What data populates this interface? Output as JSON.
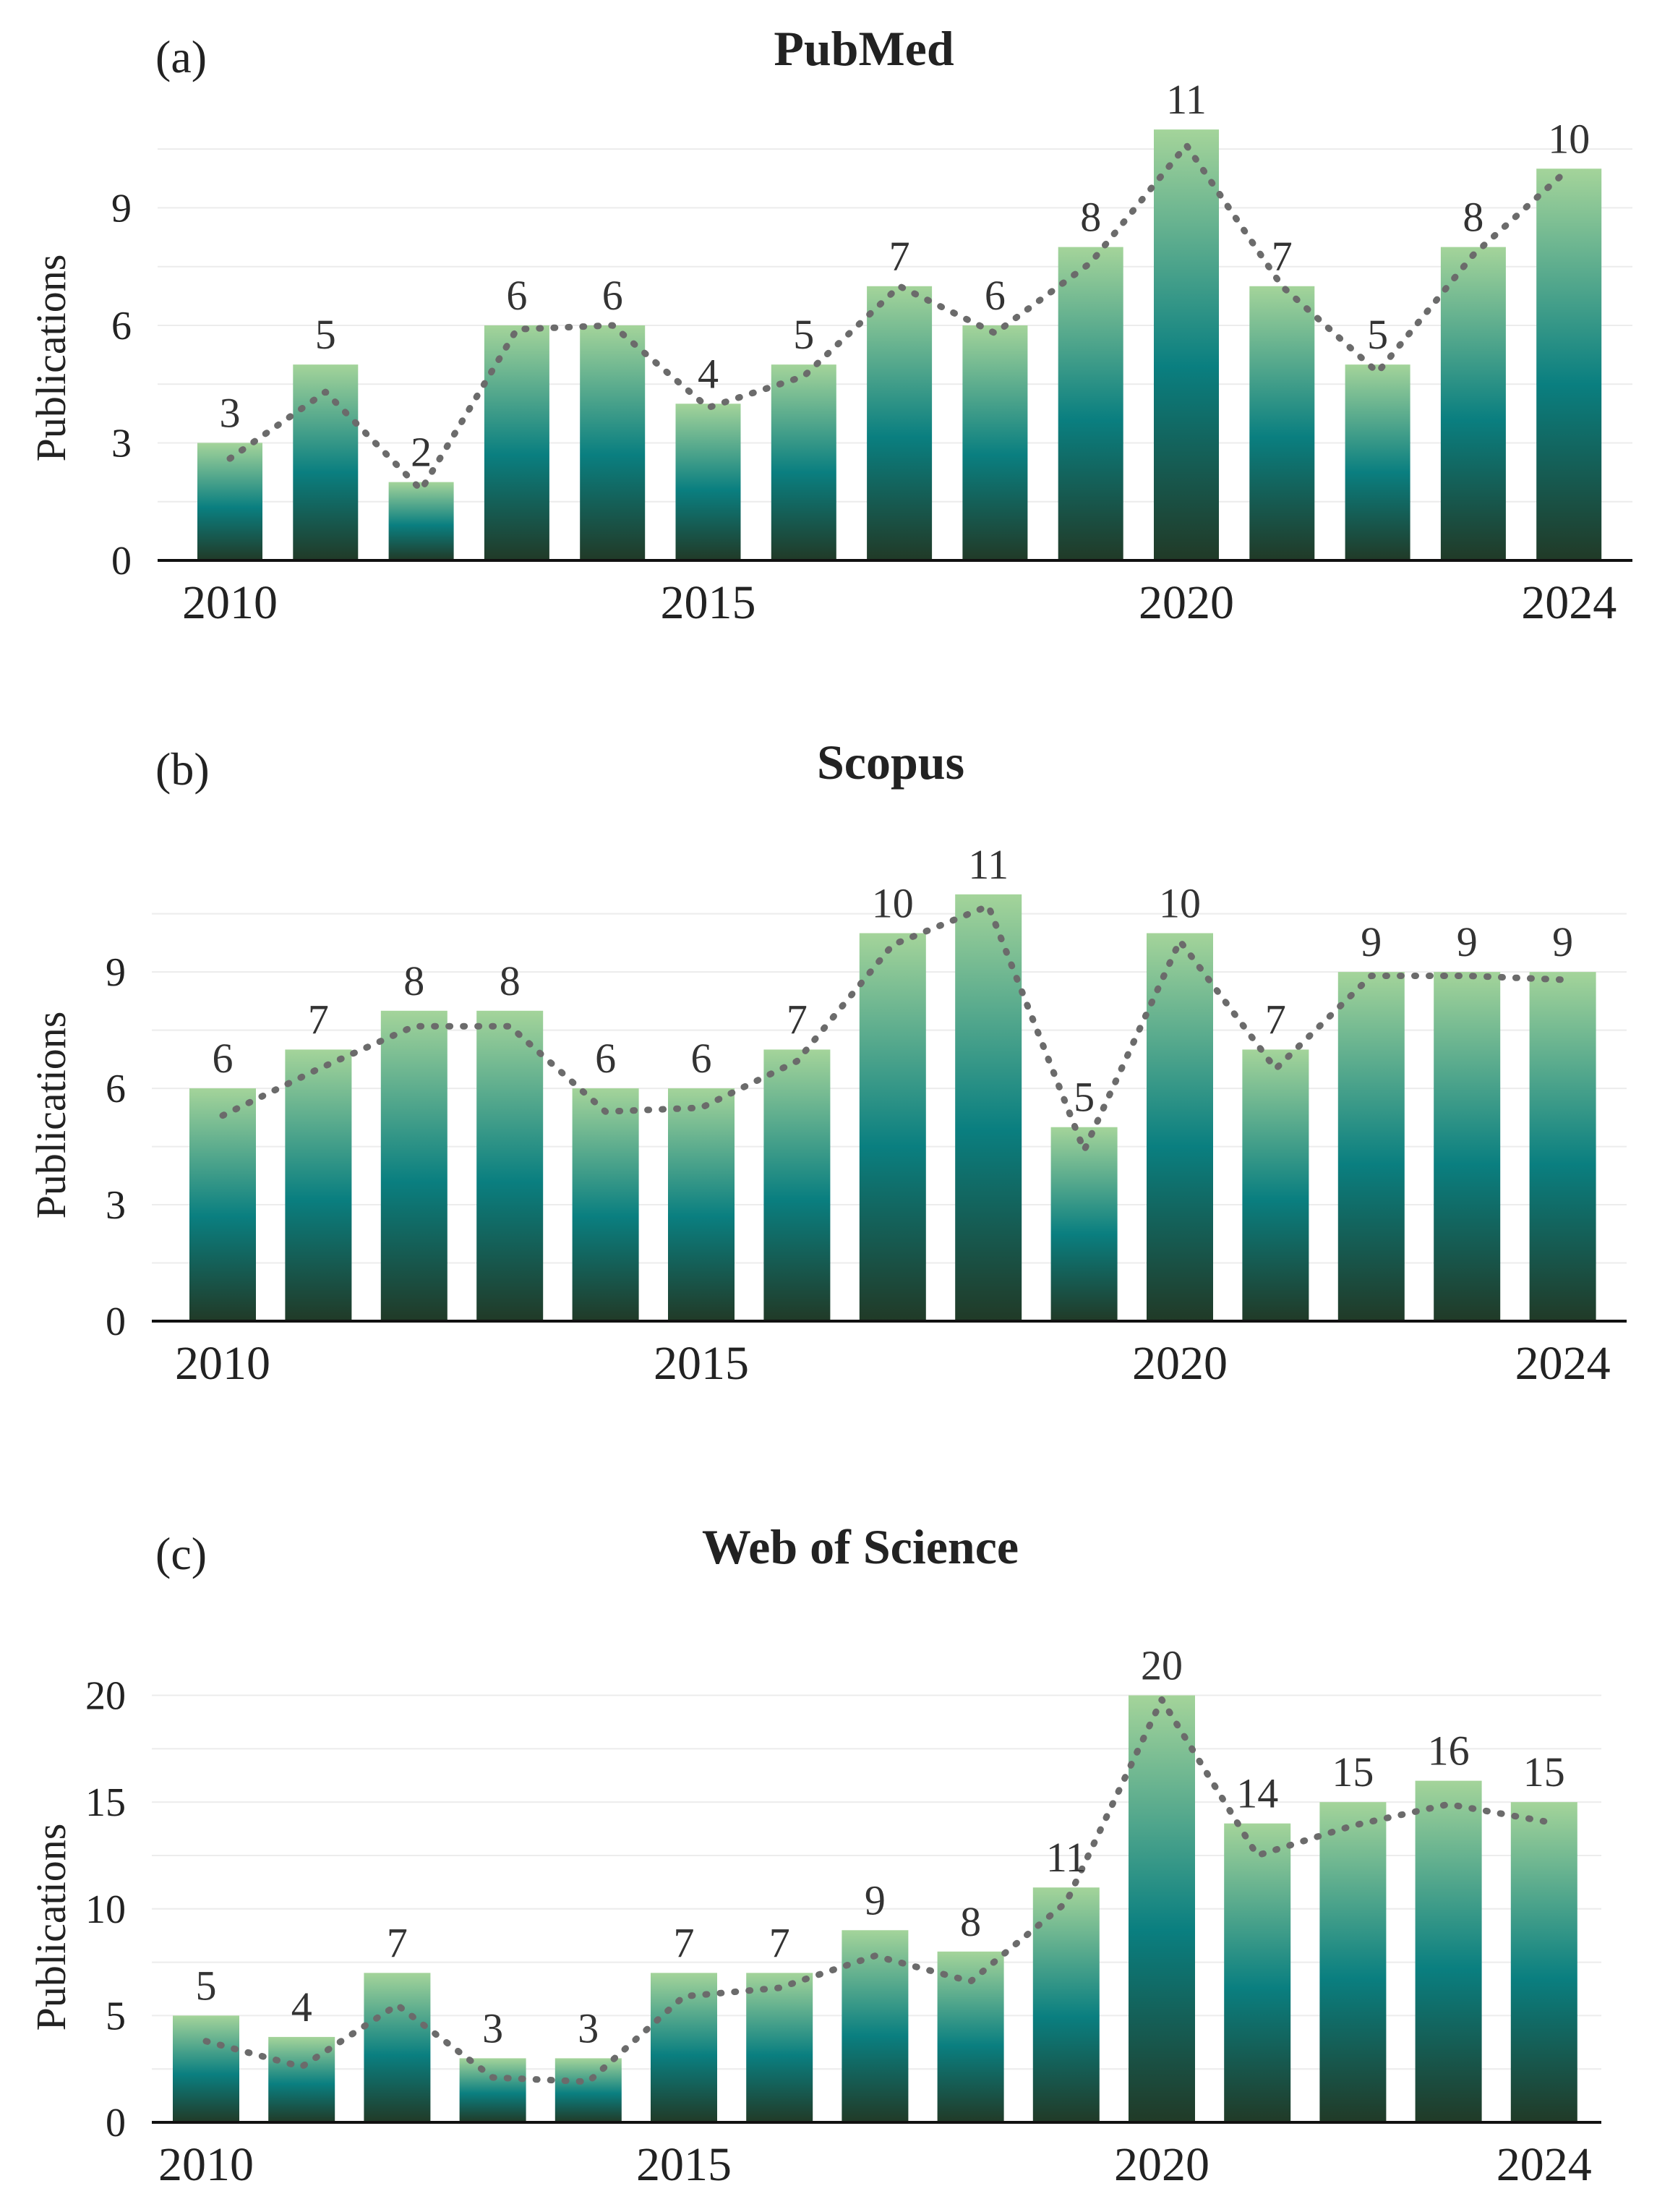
{
  "colors": {
    "bar_top": "#a4d49a",
    "bar_mid": "#0a7f80",
    "bar_bottom": "#213a27",
    "trend_line": "#6b6b6b"
  },
  "chart_data": [
    {
      "type": "bar",
      "panel_label": "(a)",
      "title": "PubMed",
      "ylabel": "Publications",
      "xlabel": "",
      "x": [
        2010,
        2011,
        2012,
        2013,
        2014,
        2015,
        2016,
        2017,
        2018,
        2019,
        2020,
        2021,
        2022,
        2023,
        2024
      ],
      "values": [
        3,
        5,
        2,
        6,
        6,
        4,
        5,
        7,
        6,
        8,
        11,
        7,
        5,
        8,
        10
      ],
      "trend": [
        2.6,
        4.3,
        1.8,
        5.9,
        6.0,
        3.9,
        4.7,
        7.0,
        5.8,
        7.6,
        10.6,
        7.0,
        4.8,
        7.8,
        10.0
      ],
      "xticks": [
        "2010",
        "2015",
        "2020",
        "2024"
      ],
      "xtick_positions": [
        2010,
        2015,
        2020,
        2024
      ],
      "yticks": [
        0,
        3,
        6,
        9
      ],
      "ylim": [
        0,
        11.5
      ]
    },
    {
      "type": "bar",
      "panel_label": "(b)",
      "title": "Scopus",
      "ylabel": "Publications",
      "xlabel": "",
      "x": [
        2010,
        2011,
        2012,
        2013,
        2014,
        2015,
        2016,
        2017,
        2018,
        2019,
        2020,
        2021,
        2022,
        2023,
        2024
      ],
      "values": [
        6,
        7,
        8,
        8,
        6,
        6,
        7,
        10,
        11,
        5,
        10,
        7,
        9,
        9,
        9
      ],
      "trend": [
        5.3,
        6.5,
        7.6,
        7.6,
        5.4,
        5.5,
        6.7,
        9.7,
        10.7,
        4.4,
        9.8,
        6.5,
        8.9,
        8.9,
        8.8
      ],
      "xticks": [
        "2010",
        "2015",
        "2020",
        "2024"
      ],
      "xtick_positions": [
        2010,
        2015,
        2020,
        2024
      ],
      "yticks": [
        0,
        3,
        6,
        9
      ],
      "ylim": [
        0,
        11.5
      ]
    },
    {
      "type": "bar",
      "panel_label": "(c)",
      "title": "Web of Science",
      "ylabel": "Publications",
      "xlabel": "",
      "x": [
        2010,
        2011,
        2012,
        2013,
        2014,
        2015,
        2016,
        2017,
        2018,
        2019,
        2020,
        2021,
        2022,
        2023,
        2024
      ],
      "values": [
        5,
        4,
        7,
        3,
        3,
        7,
        7,
        9,
        8,
        11,
        20,
        14,
        15,
        16,
        15
      ],
      "trend": [
        3.8,
        2.6,
        5.5,
        2.1,
        1.9,
        5.9,
        6.3,
        7.8,
        6.6,
        10.3,
        19.8,
        12.5,
        13.9,
        14.9,
        14.1
      ],
      "xticks": [
        "2010",
        "2015",
        "2020",
        "2024"
      ],
      "xtick_positions": [
        2010,
        2015,
        2020,
        2024
      ],
      "yticks": [
        0,
        5,
        10,
        15,
        20
      ],
      "ylim": [
        0,
        21
      ]
    }
  ]
}
